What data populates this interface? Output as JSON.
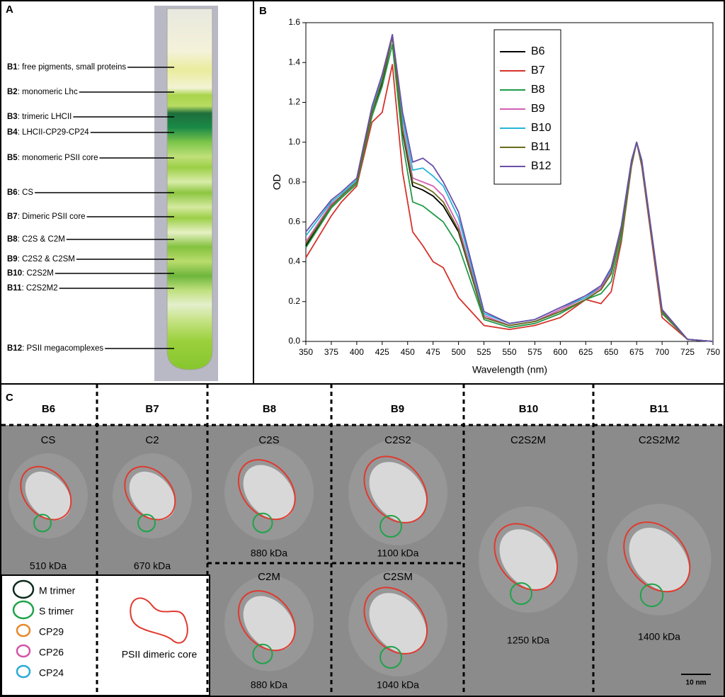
{
  "panel_a": {
    "label": "A",
    "bands": [
      {
        "id": "B1",
        "desc": ": free pigments, small proteins"
      },
      {
        "id": "B2",
        "desc": ": monomeric Lhc"
      },
      {
        "id": "B3",
        "desc": ": trimeric LHCII"
      },
      {
        "id": "B4",
        "desc": ": LHCII-CP29-CP24"
      },
      {
        "id": "B5",
        "desc": ": monomeric PSII core"
      },
      {
        "id": "B6",
        "desc": ": CS"
      },
      {
        "id": "B7",
        "desc": ": Dimeric PSII core"
      },
      {
        "id": "B8",
        "desc": ": C2S & C2M"
      },
      {
        "id": "B9",
        "desc": ": C2S2 & C2SM"
      },
      {
        "id": "B10",
        "desc": ": C2S2M"
      },
      {
        "id": "B11",
        "desc": ": C2S2M2"
      },
      {
        "id": "B12",
        "desc": ": PSII megacomplexes"
      }
    ]
  },
  "chart_data": {
    "type": "line",
    "label": "B",
    "x_label": "Wavelength (nm)",
    "y_label": "OD",
    "x": [
      350,
      375,
      385,
      400,
      415,
      425,
      435,
      445,
      455,
      465,
      475,
      485,
      500,
      525,
      550,
      575,
      600,
      625,
      640,
      650,
      660,
      670,
      675,
      680,
      700,
      725,
      750
    ],
    "series": [
      {
        "name": "B6",
        "color": "#000000",
        "values": [
          0.48,
          0.68,
          0.73,
          0.8,
          1.15,
          1.3,
          1.53,
          1.05,
          0.78,
          0.76,
          0.73,
          0.68,
          0.55,
          0.12,
          0.08,
          0.1,
          0.15,
          0.21,
          0.26,
          0.34,
          0.55,
          0.9,
          1.0,
          0.9,
          0.15,
          0.01,
          0
        ]
      },
      {
        "name": "B7",
        "color": "#d6322b",
        "values": [
          0.42,
          0.63,
          0.7,
          0.78,
          1.1,
          1.15,
          1.39,
          0.85,
          0.55,
          0.48,
          0.4,
          0.37,
          0.22,
          0.08,
          0.06,
          0.08,
          0.12,
          0.21,
          0.19,
          0.25,
          0.5,
          0.88,
          1.0,
          0.88,
          0.12,
          0.01,
          0
        ]
      },
      {
        "name": "B8",
        "color": "#1f9a48",
        "values": [
          0.47,
          0.67,
          0.72,
          0.79,
          1.13,
          1.28,
          1.49,
          1.0,
          0.7,
          0.68,
          0.64,
          0.6,
          0.48,
          0.11,
          0.07,
          0.09,
          0.14,
          0.21,
          0.24,
          0.3,
          0.52,
          0.89,
          1.0,
          0.89,
          0.14,
          0.01,
          0
        ]
      },
      {
        "name": "B9",
        "color": "#d45fb5",
        "values": [
          0.5,
          0.69,
          0.73,
          0.8,
          1.16,
          1.32,
          1.54,
          1.08,
          0.82,
          0.8,
          0.78,
          0.73,
          0.58,
          0.13,
          0.08,
          0.1,
          0.16,
          0.22,
          0.27,
          0.35,
          0.56,
          0.9,
          1.0,
          0.9,
          0.15,
          0.01,
          0
        ]
      },
      {
        "name": "B10",
        "color": "#27b4d6",
        "values": [
          0.53,
          0.7,
          0.74,
          0.81,
          1.17,
          1.33,
          1.53,
          1.12,
          0.86,
          0.87,
          0.83,
          0.78,
          0.62,
          0.14,
          0.09,
          0.11,
          0.17,
          0.22,
          0.28,
          0.36,
          0.58,
          0.91,
          1.0,
          0.91,
          0.16,
          0.01,
          0
        ]
      },
      {
        "name": "B11",
        "color": "#6b6b1e",
        "values": [
          0.49,
          0.68,
          0.73,
          0.8,
          1.15,
          1.31,
          1.53,
          1.06,
          0.8,
          0.78,
          0.75,
          0.7,
          0.56,
          0.12,
          0.08,
          0.1,
          0.15,
          0.21,
          0.26,
          0.34,
          0.55,
          0.9,
          1.0,
          0.9,
          0.15,
          0.01,
          0
        ]
      },
      {
        "name": "B12",
        "color": "#6a4fa8",
        "values": [
          0.55,
          0.71,
          0.75,
          0.82,
          1.18,
          1.34,
          1.54,
          1.15,
          0.9,
          0.92,
          0.88,
          0.8,
          0.65,
          0.15,
          0.09,
          0.11,
          0.17,
          0.23,
          0.28,
          0.37,
          0.58,
          0.91,
          1.0,
          0.91,
          0.16,
          0.01,
          0
        ]
      }
    ],
    "xlim": [
      350,
      750
    ],
    "xticks": [
      350,
      375,
      400,
      425,
      450,
      475,
      500,
      525,
      550,
      575,
      600,
      625,
      650,
      675,
      700,
      725,
      750
    ],
    "ylim": [
      0,
      1.6
    ],
    "yticks": [
      {
        "value": 0,
        "label": "0.0"
      },
      {
        "value": 0.2,
        "label": "0.2"
      },
      {
        "value": 0.4,
        "label": "0.4"
      },
      {
        "value": 0.6,
        "label": "0.6"
      },
      {
        "value": 0.8,
        "label": "0.8"
      },
      {
        "value": 1,
        "label": "1.0"
      },
      {
        "value": 1.2,
        "label": "1.2"
      },
      {
        "value": 1.4,
        "label": "1.4"
      },
      {
        "value": 1.6,
        "label": "1.6"
      }
    ],
    "legend": "upper right"
  },
  "panel_c": {
    "label": "C",
    "columns": [
      "B6",
      "B7",
      "B8",
      "B9",
      "B10",
      "B11"
    ],
    "particles": [
      {
        "name": "CS",
        "mass": "510 kDa"
      },
      {
        "name": "C2",
        "mass": "670 kDa"
      },
      {
        "name": "C2S",
        "mass": "880 kDa"
      },
      {
        "name": "C2M",
        "mass": "880 kDa"
      },
      {
        "name": "C2S2",
        "mass": "1100 kDa"
      },
      {
        "name": "C2SM",
        "mass": "1040 kDa"
      },
      {
        "name": "C2S2M",
        "mass": "1250 kDa"
      },
      {
        "name": "C2S2M2",
        "mass": "1400 kDa"
      }
    ],
    "legend": [
      "M trimer",
      "S trimer",
      "CP29",
      "CP26",
      "CP24"
    ],
    "core_label": "PSII dimeric core",
    "scale_bar": "10 nm"
  }
}
